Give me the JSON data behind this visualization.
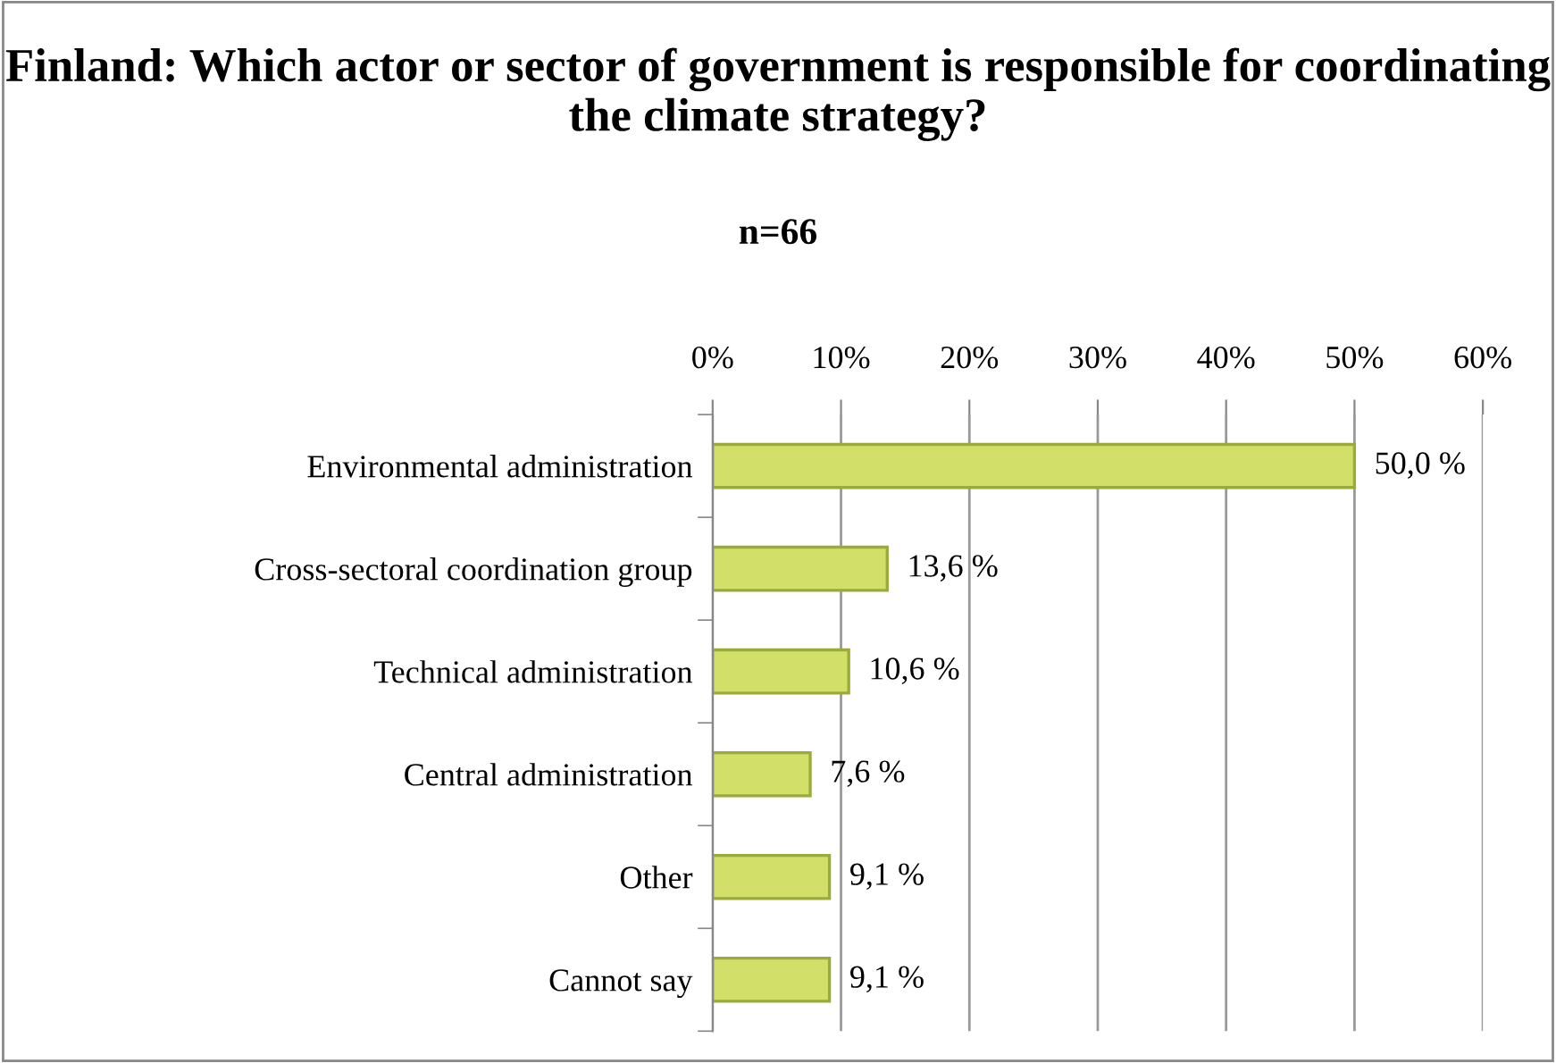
{
  "chart_data": {
    "type": "bar",
    "orientation": "horizontal",
    "title": "Finland: Which actor or sector of government is responsible for coordinating the climate strategy?",
    "subtitle": "n=66",
    "categories": [
      "Environmental administration",
      "Cross-sectoral coordination group",
      "Technical administration",
      "Central administration",
      "Other",
      "Cannot say"
    ],
    "values": [
      50.0,
      13.6,
      10.6,
      7.6,
      9.1,
      9.1
    ],
    "value_labels": [
      "50,0 %",
      "13,6 %",
      "10,6 %",
      "7,6 %",
      "9,1 %",
      "9,1 %"
    ],
    "color": "#d2df68",
    "xlim": [
      0,
      60
    ],
    "xticks": [
      {
        "value": 0,
        "label": "0%"
      },
      {
        "value": 10,
        "label": "10%"
      },
      {
        "value": 20,
        "label": "20%"
      },
      {
        "value": 30,
        "label": "30%"
      },
      {
        "value": 40,
        "label": "40%"
      },
      {
        "value": 50,
        "label": "50%"
      },
      {
        "value": 60,
        "label": "60%"
      }
    ],
    "grid": "x",
    "legend": false
  }
}
